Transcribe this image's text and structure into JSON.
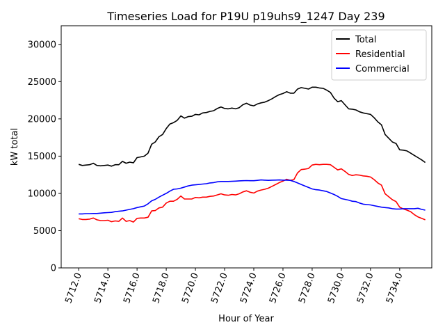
{
  "chart_data": {
    "type": "line",
    "title": "Timeseries Load for P19U p19uhs9_1247  Day 239",
    "xlabel": "Hour of Year",
    "ylabel": "kW total",
    "xlim": [
      5710.8,
      5736.2
    ],
    "ylim": [
      0,
      32500
    ],
    "xticks": [
      5712,
      5714,
      5716,
      5718,
      5720,
      5722,
      5724,
      5726,
      5728,
      5730,
      5732,
      5734
    ],
    "xtick_labels": [
      "5712.0",
      "5714.0",
      "5716.0",
      "5718.0",
      "5720.0",
      "5722.0",
      "5724.0",
      "5726.0",
      "5728.0",
      "5730.0",
      "5732.0",
      "5734.0"
    ],
    "yticks": [
      0,
      5000,
      10000,
      15000,
      20000,
      25000,
      30000
    ],
    "ytick_labels": [
      "0",
      "5000",
      "10000",
      "15000",
      "20000",
      "25000",
      "30000"
    ],
    "legend_position": "top-right",
    "x_start": 5712,
    "x_step": 0.25,
    "series": [
      {
        "name": "Total",
        "color": "#000000",
        "values": [
          13900,
          13750,
          13800,
          13850,
          14050,
          13750,
          13700,
          13750,
          13800,
          13650,
          13850,
          13850,
          14300,
          14050,
          14200,
          14100,
          14800,
          14900,
          15000,
          15400,
          16600,
          16900,
          17600,
          17900,
          18700,
          19300,
          19500,
          19800,
          20400,
          20100,
          20300,
          20350,
          20600,
          20550,
          20800,
          20850,
          21000,
          21100,
          21400,
          21600,
          21400,
          21350,
          21450,
          21350,
          21500,
          21900,
          22100,
          21850,
          21750,
          22000,
          22150,
          22250,
          22450,
          22700,
          23000,
          23250,
          23400,
          23650,
          23450,
          23450,
          24000,
          24200,
          24100,
          24000,
          24250,
          24250,
          24150,
          24100,
          23850,
          23550,
          22800,
          22300,
          22450,
          21900,
          21350,
          21300,
          21200,
          20950,
          20800,
          20700,
          20600,
          20150,
          19600,
          19200,
          17900,
          17400,
          16900,
          16700,
          15850,
          15800,
          15700,
          15400,
          15100,
          14800,
          14500,
          14150
        ]
      },
      {
        "name": "Residential",
        "color": "#ff0000",
        "values": [
          6600,
          6500,
          6500,
          6550,
          6700,
          6450,
          6350,
          6350,
          6400,
          6200,
          6300,
          6250,
          6700,
          6250,
          6350,
          6150,
          6650,
          6700,
          6700,
          6800,
          7650,
          7700,
          8050,
          8150,
          8700,
          8950,
          8950,
          9200,
          9650,
          9250,
          9250,
          9250,
          9450,
          9400,
          9500,
          9500,
          9600,
          9650,
          9800,
          9950,
          9800,
          9750,
          9850,
          9800,
          9950,
          10200,
          10350,
          10150,
          10050,
          10300,
          10450,
          10550,
          10700,
          10950,
          11200,
          11450,
          11650,
          11900,
          11750,
          11850,
          12750,
          13200,
          13250,
          13350,
          13800,
          13900,
          13850,
          13900,
          13900,
          13850,
          13500,
          13150,
          13300,
          12950,
          12550,
          12400,
          12500,
          12450,
          12350,
          12300,
          12200,
          11850,
          11400,
          11100,
          9950,
          9550,
          9150,
          8900,
          8150,
          7900,
          7750,
          7550,
          7150,
          6850,
          6650,
          6450
        ]
      },
      {
        "name": "Commercial",
        "color": "#0000ff",
        "values": [
          7250,
          7250,
          7280,
          7280,
          7300,
          7300,
          7350,
          7400,
          7420,
          7450,
          7550,
          7600,
          7650,
          7750,
          7850,
          7950,
          8100,
          8200,
          8300,
          8600,
          9000,
          9200,
          9500,
          9750,
          10000,
          10300,
          10550,
          10600,
          10700,
          10850,
          11000,
          11100,
          11150,
          11200,
          11250,
          11300,
          11400,
          11450,
          11550,
          11600,
          11600,
          11600,
          11620,
          11650,
          11680,
          11700,
          11720,
          11700,
          11700,
          11750,
          11800,
          11780,
          11750,
          11780,
          11790,
          11800,
          11780,
          11780,
          11750,
          11600,
          11400,
          11200,
          11000,
          10800,
          10600,
          10500,
          10450,
          10350,
          10250,
          10050,
          9850,
          9600,
          9300,
          9200,
          9100,
          8950,
          8900,
          8700,
          8550,
          8500,
          8450,
          8350,
          8250,
          8150,
          8100,
          8050,
          7950,
          7900,
          7900,
          7950,
          7950,
          7950,
          7950,
          8000,
          7850,
          7750
        ]
      }
    ]
  }
}
